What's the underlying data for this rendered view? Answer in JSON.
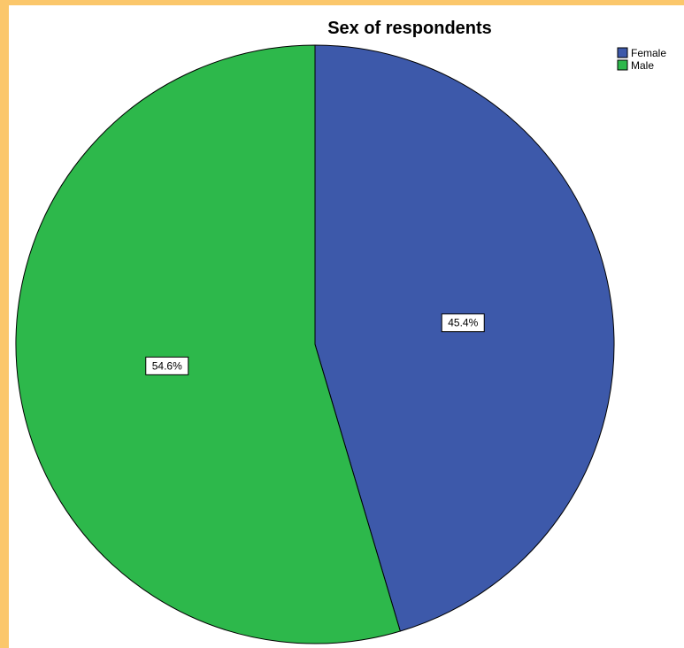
{
  "chart_data": {
    "type": "pie",
    "title": "Sex of respondents",
    "categories": [
      "Female",
      "Male"
    ],
    "values": [
      45.4,
      54.6
    ],
    "data_labels": [
      "45.4%",
      "54.6%"
    ],
    "colors": [
      "#3d59aa",
      "#2db84b"
    ],
    "legend": {
      "position": "top-right",
      "entries": [
        "Female",
        "Male"
      ]
    }
  }
}
